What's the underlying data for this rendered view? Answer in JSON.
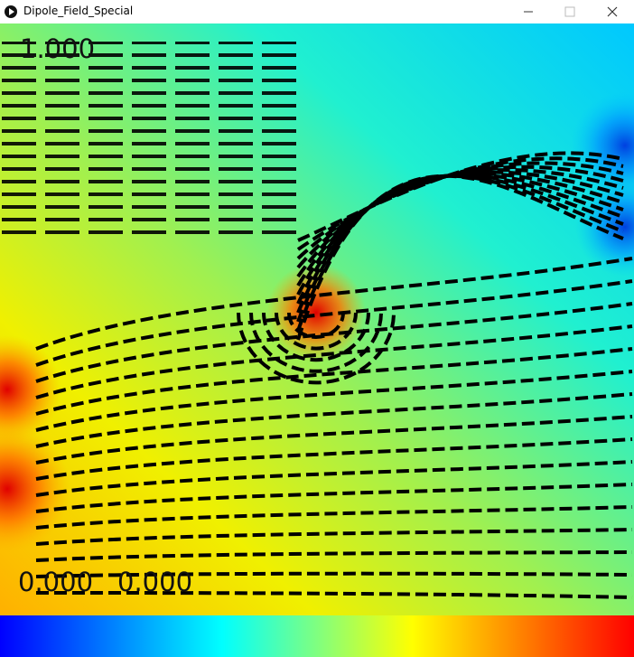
{
  "window": {
    "title": "Dipole_Field_Special"
  },
  "canvas": {
    "top_label": "1.000",
    "bottom_labels": [
      "0.000",
      "0.000"
    ]
  }
}
